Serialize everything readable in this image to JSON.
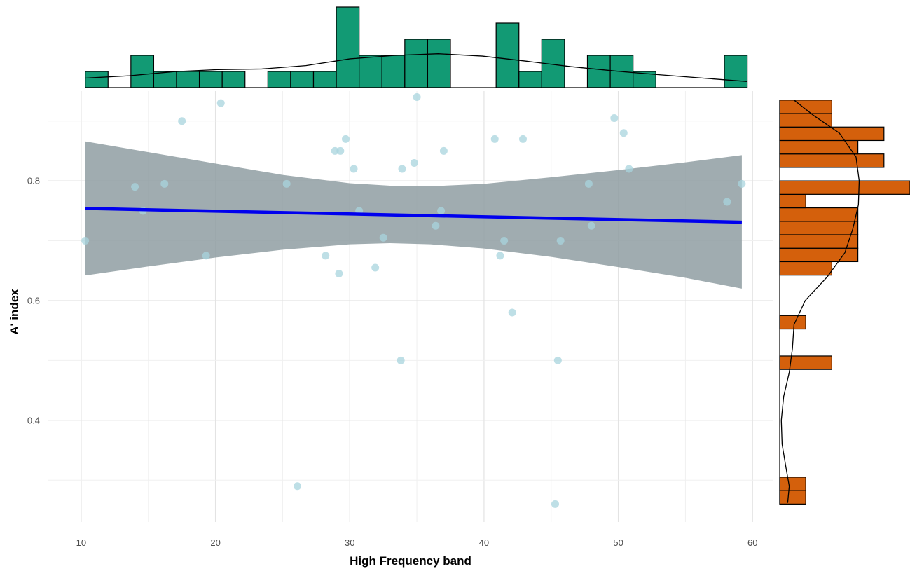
{
  "chart_data": {
    "type": "scatter",
    "xlabel": "High Frequency band",
    "ylabel": "A' index",
    "xlim": [
      7.5,
      61.5
    ],
    "ylim": [
      0.23,
      0.95
    ],
    "x_ticks": [
      10,
      20,
      30,
      40,
      50,
      60
    ],
    "y_ticks": [
      0.4,
      0.6,
      0.8
    ],
    "y_tick_labels": [
      "0.4",
      "0.6",
      "0.8"
    ],
    "grid": true,
    "colors": {
      "points": "#a8d4de",
      "fit_line": "#0000ee",
      "confidence_band": "#8f9ea2",
      "x_marginal": "#129a74",
      "y_marginal": "#d4600c",
      "density_line": "#000000"
    },
    "points": [
      {
        "x": 10.3,
        "y": 0.7
      },
      {
        "x": 14.0,
        "y": 0.79
      },
      {
        "x": 14.6,
        "y": 0.75
      },
      {
        "x": 16.2,
        "y": 0.795
      },
      {
        "x": 17.5,
        "y": 0.9
      },
      {
        "x": 19.3,
        "y": 0.675
      },
      {
        "x": 20.4,
        "y": 0.93
      },
      {
        "x": 25.3,
        "y": 0.795
      },
      {
        "x": 26.1,
        "y": 0.29
      },
      {
        "x": 28.2,
        "y": 0.675
      },
      {
        "x": 28.9,
        "y": 0.85
      },
      {
        "x": 29.2,
        "y": 0.645
      },
      {
        "x": 29.3,
        "y": 0.85
      },
      {
        "x": 29.7,
        "y": 0.87
      },
      {
        "x": 30.3,
        "y": 0.82
      },
      {
        "x": 30.7,
        "y": 0.75
      },
      {
        "x": 31.9,
        "y": 0.655
      },
      {
        "x": 32.5,
        "y": 0.705
      },
      {
        "x": 33.8,
        "y": 0.5
      },
      {
        "x": 33.9,
        "y": 0.82
      },
      {
        "x": 34.8,
        "y": 0.83
      },
      {
        "x": 35.0,
        "y": 0.94
      },
      {
        "x": 36.4,
        "y": 0.725
      },
      {
        "x": 36.8,
        "y": 0.75
      },
      {
        "x": 37.0,
        "y": 0.85
      },
      {
        "x": 40.8,
        "y": 0.87
      },
      {
        "x": 41.2,
        "y": 0.675
      },
      {
        "x": 41.5,
        "y": 0.7
      },
      {
        "x": 42.1,
        "y": 0.58
      },
      {
        "x": 42.9,
        "y": 0.87
      },
      {
        "x": 45.3,
        "y": 0.26
      },
      {
        "x": 45.5,
        "y": 0.5
      },
      {
        "x": 45.7,
        "y": 0.7
      },
      {
        "x": 47.8,
        "y": 0.795
      },
      {
        "x": 48.0,
        "y": 0.725
      },
      {
        "x": 49.7,
        "y": 0.905
      },
      {
        "x": 50.4,
        "y": 0.88
      },
      {
        "x": 50.8,
        "y": 0.82
      },
      {
        "x": 58.1,
        "y": 0.765
      },
      {
        "x": 59.2,
        "y": 0.795
      }
    ],
    "fit": {
      "x": [
        10.3,
        59.2
      ],
      "y": [
        0.754,
        0.731
      ],
      "band": [
        {
          "x": 10.3,
          "lo": 0.642,
          "hi": 0.866
        },
        {
          "x": 15,
          "lo": 0.657,
          "hi": 0.848
        },
        {
          "x": 20,
          "lo": 0.672,
          "hi": 0.829
        },
        {
          "x": 25,
          "lo": 0.685,
          "hi": 0.81
        },
        {
          "x": 30,
          "lo": 0.694,
          "hi": 0.796
        },
        {
          "x": 33,
          "lo": 0.696,
          "hi": 0.792
        },
        {
          "x": 36,
          "lo": 0.694,
          "hi": 0.791
        },
        {
          "x": 40,
          "lo": 0.687,
          "hi": 0.795
        },
        {
          "x": 45,
          "lo": 0.673,
          "hi": 0.806
        },
        {
          "x": 50,
          "lo": 0.656,
          "hi": 0.818
        },
        {
          "x": 55,
          "lo": 0.638,
          "hi": 0.831
        },
        {
          "x": 59.2,
          "lo": 0.62,
          "hi": 0.843
        }
      ]
    },
    "x_histogram": {
      "bin_width": 1.7,
      "bins": [
        {
          "x0": 10.3,
          "count": 1
        },
        {
          "x0": 12.0,
          "count": 0
        },
        {
          "x0": 13.7,
          "count": 2
        },
        {
          "x0": 15.4,
          "count": 1
        },
        {
          "x0": 17.1,
          "count": 1
        },
        {
          "x0": 18.8,
          "count": 1
        },
        {
          "x0": 20.5,
          "count": 1
        },
        {
          "x0": 22.2,
          "count": 0
        },
        {
          "x0": 23.9,
          "count": 1
        },
        {
          "x0": 25.6,
          "count": 1
        },
        {
          "x0": 27.3,
          "count": 1
        },
        {
          "x0": 29.0,
          "count": 5
        },
        {
          "x0": 30.7,
          "count": 2
        },
        {
          "x0": 32.4,
          "count": 2
        },
        {
          "x0": 34.1,
          "count": 3
        },
        {
          "x0": 35.8,
          "count": 3
        },
        {
          "x0": 37.5,
          "count": 0
        },
        {
          "x0": 39.2,
          "count": 0
        },
        {
          "x0": 40.9,
          "count": 4
        },
        {
          "x0": 42.6,
          "count": 1
        },
        {
          "x0": 44.3,
          "count": 3
        },
        {
          "x0": 46.0,
          "count": 0
        },
        {
          "x0": 47.7,
          "count": 2
        },
        {
          "x0": 49.4,
          "count": 2
        },
        {
          "x0": 51.1,
          "count": 1
        },
        {
          "x0": 52.8,
          "count": 0
        },
        {
          "x0": 54.5,
          "count": 0
        },
        {
          "x0": 56.2,
          "count": 0
        },
        {
          "x0": 57.9,
          "count": 2
        }
      ],
      "density": [
        0.28,
        0.35,
        0.47,
        0.53,
        0.55,
        0.65,
        0.85,
        0.95,
        1.0,
        0.93,
        0.78,
        0.62,
        0.49,
        0.38,
        0.28,
        0.18
      ]
    },
    "y_histogram": {
      "bin_width": 0.0225,
      "bins": [
        {
          "y0": 0.26,
          "count": 1
        },
        {
          "y0": 0.2825,
          "count": 1
        },
        {
          "y0": 0.305,
          "count": 0
        },
        {
          "y0": 0.3275,
          "count": 0
        },
        {
          "y0": 0.35,
          "count": 0
        },
        {
          "y0": 0.3725,
          "count": 0
        },
        {
          "y0": 0.395,
          "count": 0
        },
        {
          "y0": 0.4175,
          "count": 0
        },
        {
          "y0": 0.44,
          "count": 0
        },
        {
          "y0": 0.4625,
          "count": 0
        },
        {
          "y0": 0.485,
          "count": 2
        },
        {
          "y0": 0.5075,
          "count": 0
        },
        {
          "y0": 0.53,
          "count": 0
        },
        {
          "y0": 0.5525,
          "count": 1
        },
        {
          "y0": 0.575,
          "count": 0
        },
        {
          "y0": 0.5975,
          "count": 0
        },
        {
          "y0": 0.62,
          "count": 0
        },
        {
          "y0": 0.6425,
          "count": 2
        },
        {
          "y0": 0.665,
          "count": 3
        },
        {
          "y0": 0.6875,
          "count": 3
        },
        {
          "y0": 0.71,
          "count": 3
        },
        {
          "y0": 0.7325,
          "count": 3
        },
        {
          "y0": 0.755,
          "count": 1
        },
        {
          "y0": 0.7775,
          "count": 5
        },
        {
          "y0": 0.8,
          "count": 0
        },
        {
          "y0": 0.8225,
          "count": 4
        },
        {
          "y0": 0.845,
          "count": 3
        },
        {
          "y0": 0.8675,
          "count": 4
        },
        {
          "y0": 0.89,
          "count": 2
        },
        {
          "y0": 0.9125,
          "count": 2
        }
      ],
      "density": [
        {
          "y": 0.262,
          "d": 0.1
        },
        {
          "y": 0.29,
          "d": 0.12
        },
        {
          "y": 0.32,
          "d": 0.08
        },
        {
          "y": 0.36,
          "d": 0.03
        },
        {
          "y": 0.4,
          "d": 0.02
        },
        {
          "y": 0.44,
          "d": 0.05
        },
        {
          "y": 0.48,
          "d": 0.12
        },
        {
          "y": 0.52,
          "d": 0.16
        },
        {
          "y": 0.56,
          "d": 0.18
        },
        {
          "y": 0.6,
          "d": 0.32
        },
        {
          "y": 0.64,
          "d": 0.6
        },
        {
          "y": 0.68,
          "d": 0.82
        },
        {
          "y": 0.72,
          "d": 0.92
        },
        {
          "y": 0.76,
          "d": 0.99
        },
        {
          "y": 0.8,
          "d": 1.0
        },
        {
          "y": 0.84,
          "d": 0.96
        },
        {
          "y": 0.88,
          "d": 0.75
        },
        {
          "y": 0.91,
          "d": 0.42
        },
        {
          "y": 0.935,
          "d": 0.18
        }
      ]
    }
  }
}
